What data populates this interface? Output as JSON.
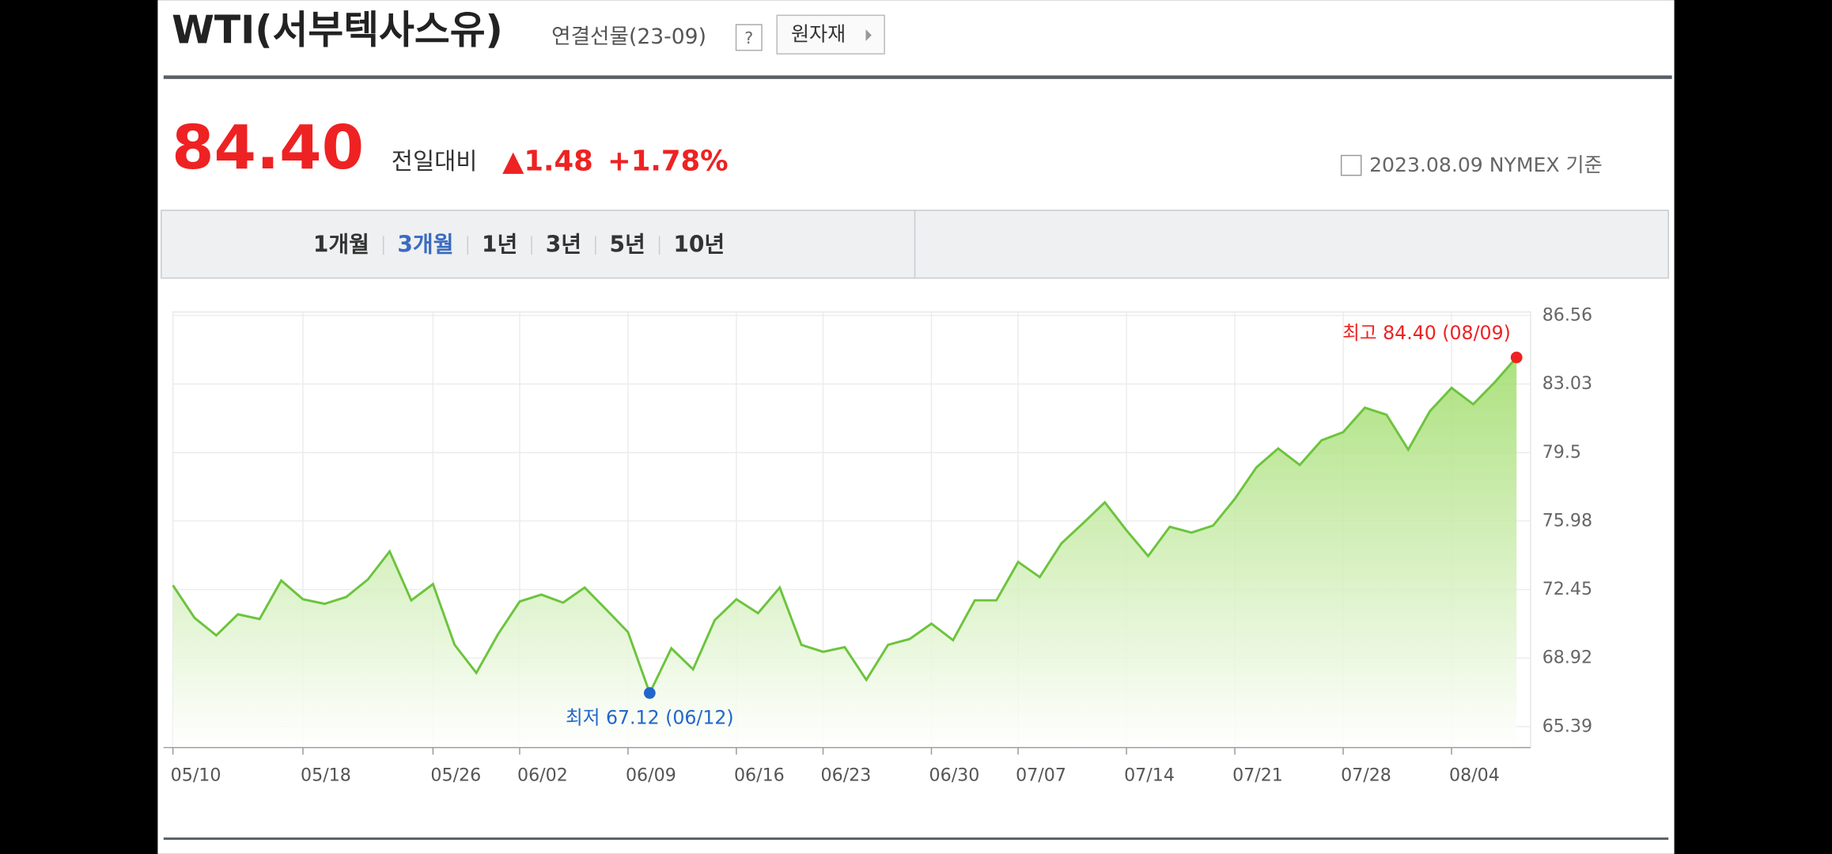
{
  "header": {
    "title": "WTI(서부텍사스유)",
    "subtitle": "연결선물(23-09)",
    "help": "?",
    "button": "원자재"
  },
  "quote": {
    "price": "84.40",
    "change_label": "전일대비",
    "change": "▲1.48",
    "change_pct": "+1.78%",
    "as_of": "2023.08.09 NYMEX 기준"
  },
  "tabs": {
    "items": [
      "1개월",
      "3개월",
      "1년",
      "3년",
      "5년",
      "10년"
    ],
    "selected": 1
  },
  "chart_data": {
    "type": "line",
    "categories": [
      "05/10",
      null,
      null,
      null,
      null,
      null,
      "05/18",
      null,
      null,
      null,
      null,
      null,
      "05/26",
      null,
      null,
      null,
      "06/02",
      null,
      null,
      null,
      null,
      "06/09",
      null,
      null,
      null,
      null,
      "06/16",
      null,
      null,
      null,
      "06/23",
      null,
      null,
      null,
      null,
      "06/30",
      null,
      null,
      null,
      "07/07",
      null,
      null,
      null,
      null,
      "07/14",
      null,
      null,
      null,
      null,
      "07/21",
      null,
      null,
      null,
      null,
      "07/28",
      null,
      null,
      null,
      null,
      "08/04",
      null,
      null,
      null
    ],
    "values": [
      72.67,
      70.99,
      70.09,
      71.17,
      70.93,
      72.91,
      71.95,
      71.71,
      72.07,
      72.97,
      74.41,
      71.89,
      72.73,
      69.6,
      68.16,
      70.14,
      71.83,
      72.19,
      71.77,
      72.55,
      71.41,
      70.26,
      67.12,
      69.42,
      68.34,
      70.87,
      71.95,
      71.23,
      72.55,
      69.6,
      69.24,
      69.48,
      67.8,
      69.6,
      69.9,
      70.69,
      69.84,
      71.89,
      71.89,
      73.87,
      73.09,
      74.83,
      75.86,
      76.94,
      75.5,
      74.17,
      75.68,
      75.38,
      75.74,
      77.12,
      78.74,
      79.71,
      78.86,
      80.13,
      80.55,
      81.81,
      81.45,
      79.65,
      81.63,
      82.83,
      81.99,
      83.13,
      84.4
    ],
    "color": "#6cc43c",
    "ylim": [
      64.31,
      86.74
    ],
    "yticks": [
      65.39,
      68.92,
      72.45,
      75.98,
      79.5,
      83.03,
      86.56
    ],
    "grid": true,
    "annotations": {
      "max": "최고 84.40 (08/09)",
      "min": "최저 67.12 (06/12)"
    }
  }
}
